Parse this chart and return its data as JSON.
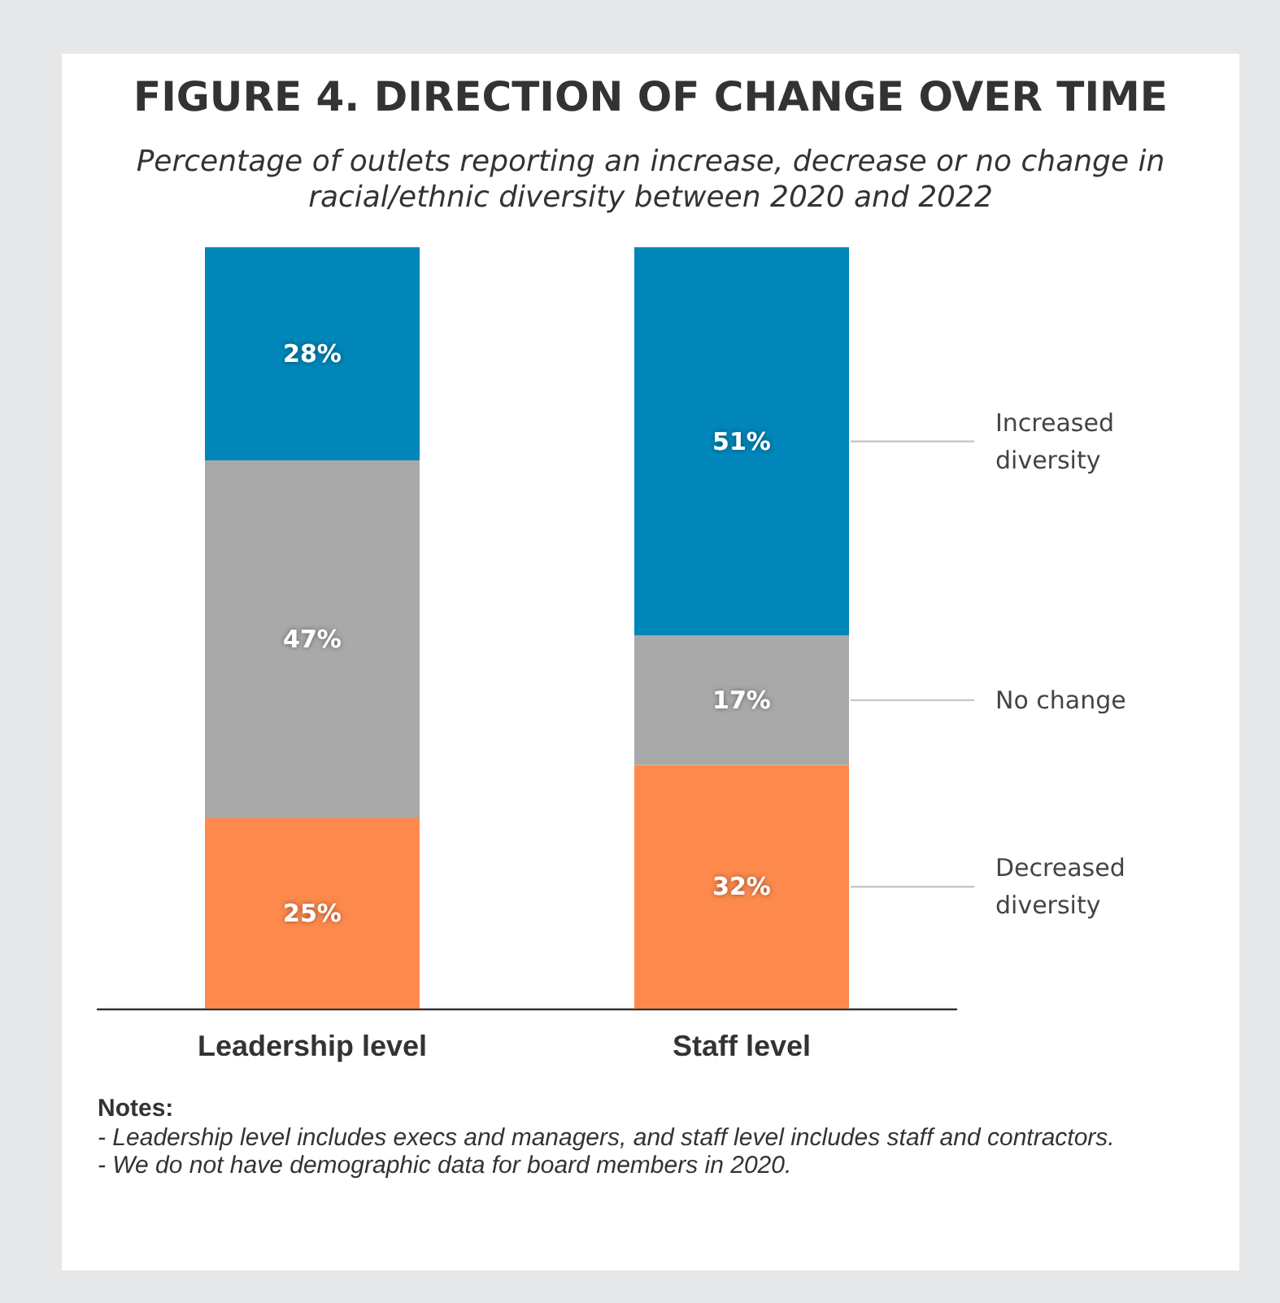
{
  "chart_data": {
    "type": "bar",
    "title": "FIGURE 4. DIRECTION OF CHANGE OVER TIME",
    "subtitle": "Percentage of outlets reporting an increase, decrease or no change in racial/ethnic diversity between 2020 and 2022",
    "categories": [
      "Leadership level",
      "Staff level"
    ],
    "stacked": true,
    "series": [
      {
        "name": "Decreased diversity",
        "color": "#fd8a4c",
        "values": [
          25,
          32
        ],
        "value_labels": [
          "25%",
          "32%"
        ]
      },
      {
        "name": "No change",
        "color": "#a9a9a9",
        "values": [
          47,
          17
        ],
        "value_labels": [
          "47%",
          "17%"
        ]
      },
      {
        "name": "Increased diversity",
        "color": "#0086b9",
        "values": [
          28,
          51
        ],
        "value_labels": [
          "28%",
          "51%"
        ]
      }
    ],
    "annotations": [
      "Notes:",
      "- Leadership level includes execs and managers, and staff level includes staff and contractors.",
      "- We do not have demographic data for board members in 2020."
    ]
  }
}
